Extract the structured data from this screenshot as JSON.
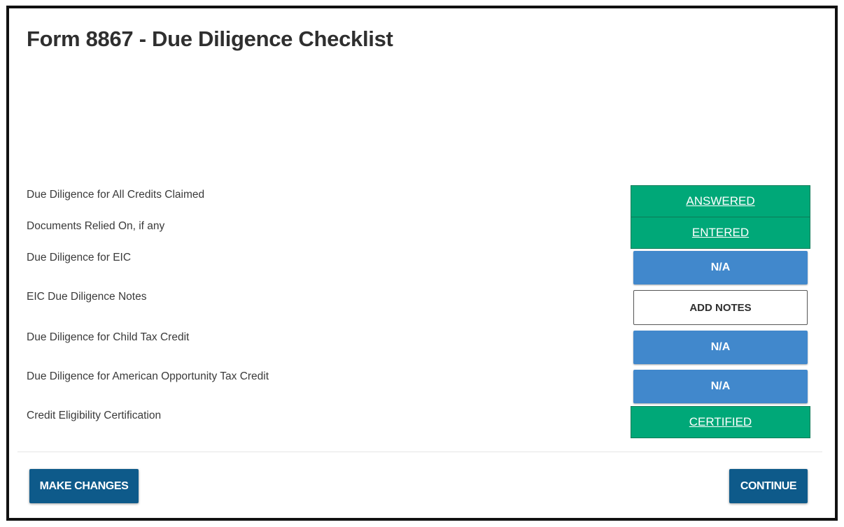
{
  "page": {
    "title": "Form 8867 - Due Diligence Checklist"
  },
  "rows": [
    {
      "label": "Due Diligence for All Credits Claimed",
      "status": "ANSWERED"
    },
    {
      "label": "Documents Relied On, if any",
      "status": "ENTERED"
    },
    {
      "label": "Due Diligence for EIC",
      "status": "N/A"
    },
    {
      "label": "EIC Due Diligence Notes",
      "status": "ADD NOTES"
    },
    {
      "label": "Due Diligence for Child Tax Credit",
      "status": "N/A"
    },
    {
      "label": "Due Diligence for American Opportunity Tax Credit",
      "status": "N/A"
    },
    {
      "label": "Credit Eligibility Certification",
      "status": "CERTIFIED"
    }
  ],
  "footer": {
    "make_changes_label": "MAKE CHANGES",
    "continue_label": "CONTINUE"
  },
  "colors": {
    "complete_green": "#00a878",
    "na_blue": "#4188cc",
    "primary_navy": "#0e5a8a"
  }
}
